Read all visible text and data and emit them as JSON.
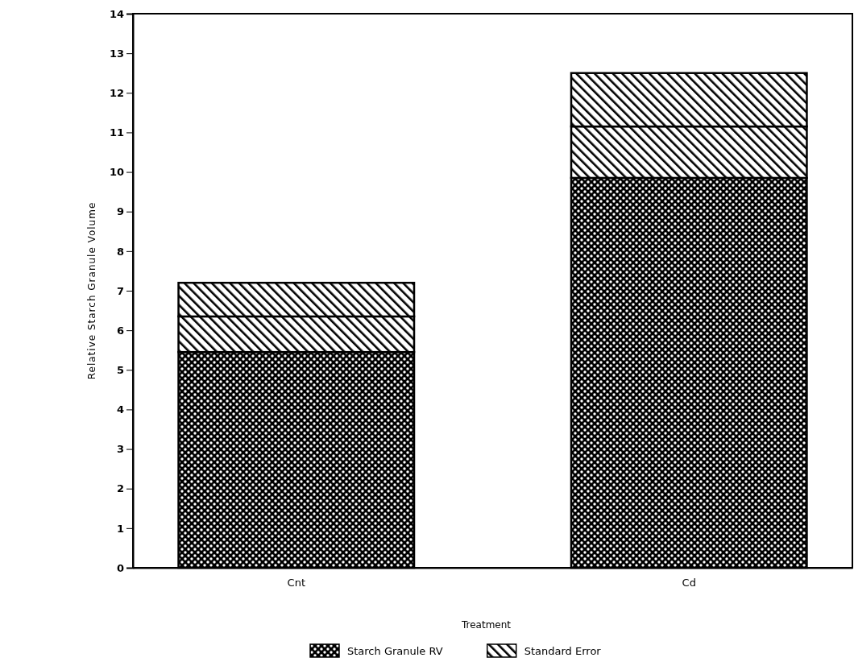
{
  "chart_data": {
    "type": "bar",
    "stacked": true,
    "xlabel": "Treatment",
    "ylabel": "Relative Starch Granule Volume",
    "categories": [
      "Cnt",
      "Cd"
    ],
    "series": [
      {
        "name": "Starch Granule RV",
        "color": "#000000",
        "values": [
          5.45,
          9.85
        ]
      },
      {
        "name": "Standard Error",
        "color": "#000000",
        "values": [
          0.9,
          1.3
        ]
      },
      {
        "color": "#000000",
        "values": [
          0.85,
          1.35
        ]
      }
    ],
    "ylim": [
      0,
      14
    ],
    "yticks": [
      0,
      1,
      2,
      3,
      4,
      5,
      6,
      7,
      8,
      9,
      10,
      11,
      12,
      13,
      14
    ],
    "grid": false,
    "legend": "bottom"
  }
}
